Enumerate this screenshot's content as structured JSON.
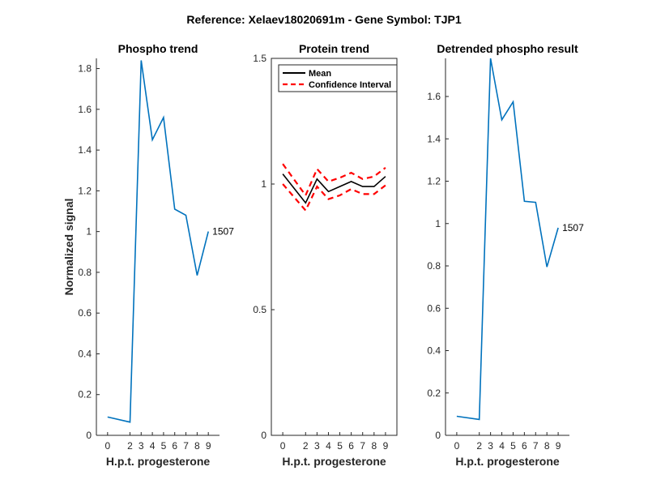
{
  "figure": {
    "suptitle": "Reference:  Xelaev18020691m - Gene Symbol:  TJP1"
  },
  "chart_data": [
    {
      "type": "line",
      "title": "Phospho trend",
      "xlabel": "H.p.t. progesterone",
      "ylabel": "Normalized signal",
      "x": [
        0,
        2,
        3,
        4,
        5,
        6,
        7,
        8,
        9
      ],
      "x_tick_labels": [
        "0",
        "2",
        "3",
        "4",
        "5",
        "6",
        "7",
        "8",
        "9"
      ],
      "ylim": [
        0,
        1.85
      ],
      "y_ticks": [
        0,
        0.2,
        0.4,
        0.6,
        0.8,
        1,
        1.2,
        1.4,
        1.6,
        1.8
      ],
      "y_tick_labels": [
        "0",
        "0.2",
        "0.4",
        "0.6",
        "0.8",
        "1",
        "1.2",
        "1.4",
        "1.6",
        "1.8"
      ],
      "series": [
        {
          "values": [
            0.09,
            0.065,
            1.84,
            1.45,
            1.56,
            1.11,
            1.08,
            0.785,
            1.0
          ],
          "color": "#0072BD",
          "style": "solid"
        }
      ],
      "annotation": {
        "text": "1507",
        "x": 9,
        "y": 1.0
      },
      "grid": false,
      "box": false
    },
    {
      "type": "line",
      "title": "Protein trend",
      "xlabel": "H.p.t. progesterone",
      "ylabel": "",
      "x": [
        0,
        2,
        3,
        4,
        5,
        6,
        7,
        8,
        9
      ],
      "x_tick_labels": [
        "0",
        "2",
        "3",
        "4",
        "5",
        "6",
        "7",
        "8",
        "9"
      ],
      "ylim": [
        0,
        1.5
      ],
      "y_ticks": [
        0,
        0.5,
        1,
        1.5
      ],
      "y_tick_labels": [
        "0",
        "0.5",
        "1",
        "1.5"
      ],
      "series": [
        {
          "name": "Mean",
          "values": [
            1.04,
            0.925,
            1.02,
            0.97,
            0.99,
            1.01,
            0.99,
            0.99,
            1.03
          ],
          "color": "#000000",
          "style": "solid"
        },
        {
          "name": "Confidence Interval",
          "values": [
            1.08,
            0.955,
            1.06,
            1.01,
            1.025,
            1.045,
            1.02,
            1.03,
            1.065
          ],
          "color": "#FF0000",
          "style": "dashed"
        },
        {
          "name": "",
          "values": [
            1.0,
            0.895,
            0.99,
            0.94,
            0.955,
            0.98,
            0.96,
            0.96,
            0.995
          ],
          "color": "#FF0000",
          "style": "dashed"
        }
      ],
      "legend": {
        "position": "top-left",
        "entries": [
          "Mean",
          "Confidence Interval"
        ]
      },
      "grid": false,
      "box": true
    },
    {
      "type": "line",
      "title": "Detrended phospho result",
      "xlabel": "H.p.t. progesterone",
      "ylabel": "",
      "x": [
        0,
        2,
        3,
        4,
        5,
        6,
        7,
        8,
        9
      ],
      "x_tick_labels": [
        "0",
        "2",
        "3",
        "4",
        "5",
        "6",
        "7",
        "8",
        "9"
      ],
      "ylim": [
        0,
        1.78
      ],
      "y_ticks": [
        0,
        0.2,
        0.4,
        0.6,
        0.8,
        1,
        1.2,
        1.4,
        1.6
      ],
      "y_tick_labels": [
        "0",
        "0.2",
        "0.4",
        "0.6",
        "0.8",
        "1",
        "1.2",
        "1.4",
        "1.6"
      ],
      "series": [
        {
          "values": [
            0.09,
            0.075,
            1.78,
            1.49,
            1.575,
            1.105,
            1.1,
            0.795,
            0.98
          ],
          "color": "#0072BD",
          "style": "solid"
        }
      ],
      "annotation": {
        "text": "1507",
        "x": 9,
        "y": 0.98
      },
      "grid": false,
      "box": false
    }
  ]
}
